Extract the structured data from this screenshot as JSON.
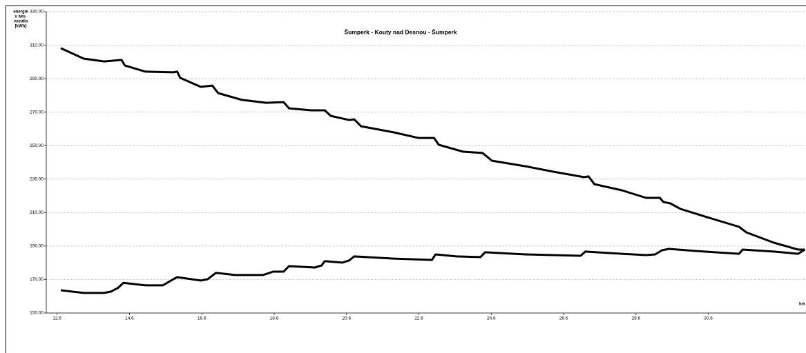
{
  "chart_data": {
    "type": "line",
    "title": "Šumperk - Kouty nad Desnou - Šumperk",
    "y_label": [
      "energie",
      "v aku.",
      "vozidla",
      "[kWh]"
    ],
    "x_label": "km",
    "xlim": [
      12.3,
      33.3
    ],
    "ylim": [
      150,
      330
    ],
    "xticks": [
      12.6,
      14.6,
      16.6,
      18.6,
      20.6,
      22.6,
      24.6,
      26.6,
      28.6,
      30.6
    ],
    "yticks": [
      {
        "value": 150,
        "label": "150.00"
      },
      {
        "value": 170,
        "label": "170.00"
      },
      {
        "value": 190,
        "label": "190.00"
      },
      {
        "value": 210,
        "label": "210.00"
      },
      {
        "value": 230,
        "label": "230.00"
      },
      {
        "value": 250,
        "label": "250.00"
      },
      {
        "value": 270,
        "label": "270.00"
      },
      {
        "value": 290,
        "label": "290.00"
      },
      {
        "value": 310,
        "label": "310.00"
      },
      {
        "value": 330,
        "label": "330.00"
      }
    ],
    "grid": true,
    "series": [
      {
        "color": "#000000",
        "x": [
          12.7,
          13.33,
          13.9,
          14.38,
          14.47,
          15.04,
          15.81,
          15.92,
          16.0,
          16.57,
          16.89,
          17.05,
          17.71,
          18.38,
          18.86,
          19.01,
          19.62,
          20.0,
          20.16,
          20.67,
          20.81,
          21.0,
          21.91,
          22.58,
          23.02,
          23.15,
          23.82,
          24.36,
          24.62,
          25.54,
          26.3,
          27.16,
          27.29,
          27.45,
          28.21,
          28.88,
          29.26,
          29.36,
          29.55,
          29.83,
          30.5,
          31.45,
          31.65,
          32.41,
          33.08,
          33.27
        ],
        "values": [
          308.2,
          302,
          300.3,
          301.2,
          297.9,
          294.2,
          293.8,
          294.2,
          290.5,
          285.1,
          285.9,
          281.4,
          277.3,
          275.6,
          276,
          272.3,
          271.1,
          271.1,
          267.8,
          265.3,
          265.7,
          261.6,
          257.9,
          254.6,
          254.6,
          250.5,
          246.4,
          245.6,
          241,
          237.7,
          234.5,
          231.2,
          231.6,
          227,
          223.3,
          218.8,
          218.8,
          216.3,
          215.5,
          212.2,
          207.7,
          201.5,
          198.2,
          192,
          187.9,
          187.9
        ]
      },
      {
        "color": "#000000",
        "x": [
          12.7,
          13.33,
          13.9,
          14.09,
          14.28,
          14.43,
          15.04,
          15.52,
          15.81,
          15.92,
          16.57,
          16.76,
          16.99,
          17.52,
          18.29,
          18.57,
          18.86,
          19.01,
          19.72,
          19.91,
          20.0,
          20.48,
          20.67,
          20.81,
          21.91,
          22.96,
          23.06,
          23.63,
          24.3,
          24.43,
          25.54,
          27.07,
          27.2,
          28.21,
          28.88,
          29.13,
          29.32,
          29.51,
          30.31,
          31.45,
          31.55,
          32.41,
          33.08,
          33.27
        ],
        "values": [
          163.6,
          162,
          162,
          162.8,
          165,
          168,
          166.5,
          166.5,
          170.2,
          171.4,
          169.4,
          170.2,
          174,
          172.7,
          172.7,
          174.7,
          174.7,
          178,
          177.2,
          178.4,
          181,
          180.1,
          181.4,
          183.8,
          182.5,
          181.7,
          185,
          183.8,
          183.4,
          186.3,
          185,
          184.2,
          186.7,
          185.4,
          184.6,
          185,
          187.5,
          188.3,
          187,
          185.4,
          187.9,
          186.7,
          185.4,
          187.9
        ]
      }
    ]
  }
}
